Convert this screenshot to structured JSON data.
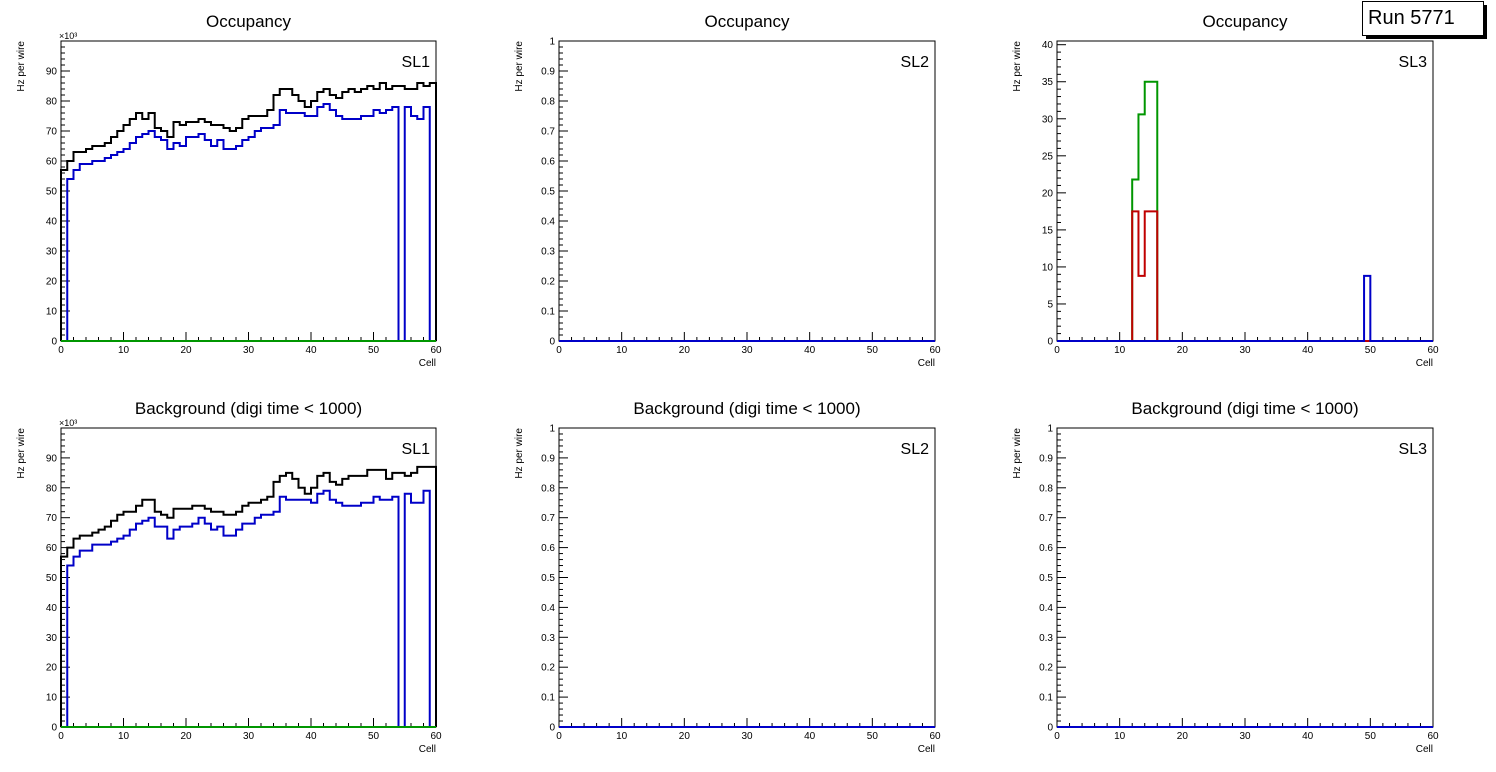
{
  "run_label": "Run 5771",
  "colors": {
    "total": "#000000",
    "blue": "#0000c8",
    "green": "#009600",
    "red": "#c00000"
  },
  "chart_data": [
    {
      "id": "occ-sl1",
      "type": "line",
      "title": "Occupancy",
      "label": "SL1",
      "xlabel": "Cell",
      "ylabel": "Hz per wire",
      "exponent": "×10³",
      "xlim": [
        0,
        60
      ],
      "ylim": [
        0,
        100
      ],
      "xticks": [
        0,
        10,
        20,
        30,
        40,
        50,
        60
      ],
      "yticks": [
        0,
        10,
        20,
        30,
        40,
        50,
        60,
        70,
        80,
        90
      ],
      "series": [
        {
          "color": "#000000",
          "values": [
            57,
            60,
            63,
            63,
            64,
            65,
            65,
            66,
            68,
            70,
            72,
            74,
            76,
            74,
            76,
            71,
            70,
            68,
            73,
            72,
            73,
            73,
            74,
            73,
            72,
            72,
            71,
            70,
            71,
            74,
            75,
            75,
            75,
            77,
            82,
            84,
            84,
            82,
            80,
            78,
            80,
            83,
            84,
            82,
            81,
            83,
            84,
            83,
            84,
            85,
            84,
            86,
            84,
            85,
            85,
            84,
            84,
            86,
            85,
            86
          ]
        },
        {
          "color": "#0000c8",
          "values": [
            0,
            54,
            57,
            59,
            59,
            60,
            60,
            61,
            62,
            63,
            64,
            66,
            68,
            69,
            70,
            68,
            67,
            64,
            66,
            65,
            68,
            68,
            69,
            67,
            65,
            67,
            64,
            64,
            65,
            67,
            68,
            70,
            71,
            71,
            72,
            77,
            76,
            76,
            76,
            75,
            75,
            78,
            79,
            77,
            75,
            74,
            74,
            74,
            75,
            75,
            77,
            76,
            77,
            78,
            0,
            78,
            75,
            74,
            78,
            0
          ]
        },
        {
          "color": "#009600",
          "values": [
            0,
            0,
            0,
            0,
            0,
            0,
            0,
            0,
            0,
            0,
            0,
            0,
            0,
            0,
            0,
            0,
            0,
            0,
            0,
            0,
            0,
            0,
            0,
            0,
            0,
            0,
            0,
            0,
            0,
            0,
            0,
            0,
            0,
            0,
            0,
            0,
            0,
            0,
            0,
            0,
            0,
            0,
            0,
            0,
            0,
            0,
            0,
            0,
            0,
            0,
            0,
            0,
            0,
            0,
            0,
            0,
            0,
            0,
            0,
            0
          ]
        }
      ]
    },
    {
      "id": "occ-sl2",
      "type": "line",
      "title": "Occupancy",
      "label": "SL2",
      "xlabel": "Cell",
      "ylabel": "Hz per wire",
      "exponent": "",
      "xlim": [
        0,
        60
      ],
      "ylim": [
        0,
        1
      ],
      "xticks": [
        0,
        10,
        20,
        30,
        40,
        50,
        60
      ],
      "yticks": [
        0,
        0.1,
        0.2,
        0.3,
        0.4,
        0.5,
        0.6,
        0.7,
        0.8,
        0.9,
        1
      ],
      "series": [
        {
          "color": "#0000c8",
          "values": [
            0,
            0,
            0,
            0,
            0,
            0,
            0,
            0,
            0,
            0,
            0,
            0,
            0,
            0,
            0,
            0,
            0,
            0,
            0,
            0,
            0,
            0,
            0,
            0,
            0,
            0,
            0,
            0,
            0,
            0,
            0,
            0,
            0,
            0,
            0,
            0,
            0,
            0,
            0,
            0,
            0,
            0,
            0,
            0,
            0,
            0,
            0,
            0,
            0,
            0,
            0,
            0,
            0,
            0,
            0,
            0,
            0,
            0,
            0,
            0
          ]
        }
      ]
    },
    {
      "id": "occ-sl3",
      "type": "line",
      "title": "Occupancy",
      "label": "SL3",
      "xlabel": "Cell",
      "ylabel": "Hz per wire",
      "exponent": "",
      "xlim": [
        0,
        60
      ],
      "ylim": [
        0,
        40.5
      ],
      "xticks": [
        0,
        10,
        20,
        30,
        40,
        50,
        60
      ],
      "yticks": [
        0,
        5,
        10,
        15,
        20,
        25,
        30,
        35,
        40
      ],
      "series": [
        {
          "color": "#009600",
          "values": [
            0,
            0,
            0,
            0,
            0,
            0,
            0,
            0,
            0,
            0,
            0,
            0,
            21.8,
            30.6,
            35,
            35,
            0,
            0,
            0,
            0,
            0,
            0,
            0,
            0,
            0,
            0,
            0,
            0,
            0,
            0,
            0,
            0,
            0,
            0,
            0,
            0,
            0,
            0,
            0,
            0,
            0,
            0,
            0,
            0,
            0,
            0,
            0,
            0,
            0,
            0,
            0,
            0,
            0,
            0,
            0,
            0,
            0,
            0,
            0,
            0
          ]
        },
        {
          "color": "#c00000",
          "values": [
            0,
            0,
            0,
            0,
            0,
            0,
            0,
            0,
            0,
            0,
            0,
            0,
            17.5,
            8.8,
            17.5,
            17.5,
            0,
            0,
            0,
            0,
            0,
            0,
            0,
            0,
            0,
            0,
            0,
            0,
            0,
            0,
            0,
            0,
            0,
            0,
            0,
            0,
            0,
            0,
            0,
            0,
            0,
            0,
            0,
            0,
            0,
            0,
            0,
            0,
            0,
            0,
            0,
            0,
            0,
            0,
            0,
            0,
            0,
            0,
            0,
            0
          ]
        },
        {
          "color": "#0000c8",
          "values": [
            0,
            0,
            0,
            0,
            0,
            0,
            0,
            0,
            0,
            0,
            0,
            0,
            0,
            0,
            0,
            0,
            0,
            0,
            0,
            0,
            0,
            0,
            0,
            0,
            0,
            0,
            0,
            0,
            0,
            0,
            0,
            0,
            0,
            0,
            0,
            0,
            0,
            0,
            0,
            0,
            0,
            0,
            0,
            0,
            0,
            0,
            0,
            0,
            0,
            8.8,
            0,
            0,
            0,
            0,
            0,
            0,
            0,
            0,
            0,
            0
          ]
        }
      ]
    },
    {
      "id": "bkg-sl1",
      "type": "line",
      "title": "Background (digi time < 1000)",
      "label": "SL1",
      "xlabel": "Cell",
      "ylabel": "Hz per wire",
      "exponent": "×10³",
      "xlim": [
        0,
        60
      ],
      "ylim": [
        0,
        100
      ],
      "xticks": [
        0,
        10,
        20,
        30,
        40,
        50,
        60
      ],
      "yticks": [
        0,
        10,
        20,
        30,
        40,
        50,
        60,
        70,
        80,
        90
      ],
      "series": [
        {
          "color": "#000000",
          "values": [
            57,
            60,
            63,
            64,
            64,
            65,
            66,
            67,
            69,
            71,
            72,
            72,
            74,
            76,
            76,
            72,
            71,
            70,
            73,
            73,
            73,
            74,
            74,
            73,
            72,
            72,
            71,
            71,
            72,
            74,
            75,
            75,
            76,
            77,
            82,
            84,
            85,
            83,
            80,
            78,
            80,
            84,
            85,
            82,
            81,
            83,
            84,
            84,
            84,
            86,
            86,
            86,
            83,
            85,
            85,
            84,
            85,
            87,
            87,
            87
          ]
        },
        {
          "color": "#0000c8",
          "values": [
            0,
            54,
            57,
            59,
            59,
            61,
            61,
            61,
            62,
            63,
            64,
            66,
            68,
            69,
            70,
            67,
            67,
            63,
            66,
            67,
            67,
            68,
            70,
            68,
            66,
            67,
            64,
            64,
            66,
            68,
            68,
            70,
            71,
            71,
            72,
            77,
            76,
            76,
            76,
            76,
            75,
            78,
            79,
            76,
            75,
            74,
            74,
            74,
            75,
            75,
            77,
            76,
            76,
            77,
            0,
            78,
            75,
            75,
            79,
            0
          ]
        },
        {
          "color": "#009600",
          "values": [
            0,
            0,
            0,
            0,
            0,
            0,
            0,
            0,
            0,
            0,
            0,
            0,
            0,
            0,
            0,
            0,
            0,
            0,
            0,
            0,
            0,
            0,
            0,
            0,
            0,
            0,
            0,
            0,
            0,
            0,
            0,
            0,
            0,
            0,
            0,
            0,
            0,
            0,
            0,
            0,
            0,
            0,
            0,
            0,
            0,
            0,
            0,
            0,
            0,
            0,
            0,
            0,
            0,
            0,
            0,
            0,
            0,
            0,
            0,
            0
          ]
        }
      ]
    },
    {
      "id": "bkg-sl2",
      "type": "line",
      "title": "Background (digi time < 1000)",
      "label": "SL2",
      "xlabel": "Cell",
      "ylabel": "Hz per wire",
      "exponent": "",
      "xlim": [
        0,
        60
      ],
      "ylim": [
        0,
        1
      ],
      "xticks": [
        0,
        10,
        20,
        30,
        40,
        50,
        60
      ],
      "yticks": [
        0,
        0.1,
        0.2,
        0.3,
        0.4,
        0.5,
        0.6,
        0.7,
        0.8,
        0.9,
        1
      ],
      "series": [
        {
          "color": "#0000c8",
          "values": [
            0,
            0,
            0,
            0,
            0,
            0,
            0,
            0,
            0,
            0,
            0,
            0,
            0,
            0,
            0,
            0,
            0,
            0,
            0,
            0,
            0,
            0,
            0,
            0,
            0,
            0,
            0,
            0,
            0,
            0,
            0,
            0,
            0,
            0,
            0,
            0,
            0,
            0,
            0,
            0,
            0,
            0,
            0,
            0,
            0,
            0,
            0,
            0,
            0,
            0,
            0,
            0,
            0,
            0,
            0,
            0,
            0,
            0,
            0,
            0
          ]
        }
      ]
    },
    {
      "id": "bkg-sl3",
      "type": "line",
      "title": "Background (digi time < 1000)",
      "label": "SL3",
      "xlabel": "Cell",
      "ylabel": "Hz per wire",
      "exponent": "",
      "xlim": [
        0,
        60
      ],
      "ylim": [
        0,
        1
      ],
      "xticks": [
        0,
        10,
        20,
        30,
        40,
        50,
        60
      ],
      "yticks": [
        0,
        0.1,
        0.2,
        0.3,
        0.4,
        0.5,
        0.6,
        0.7,
        0.8,
        0.9,
        1
      ],
      "series": [
        {
          "color": "#0000c8",
          "values": [
            0,
            0,
            0,
            0,
            0,
            0,
            0,
            0,
            0,
            0,
            0,
            0,
            0,
            0,
            0,
            0,
            0,
            0,
            0,
            0,
            0,
            0,
            0,
            0,
            0,
            0,
            0,
            0,
            0,
            0,
            0,
            0,
            0,
            0,
            0,
            0,
            0,
            0,
            0,
            0,
            0,
            0,
            0,
            0,
            0,
            0,
            0,
            0,
            0,
            0,
            0,
            0,
            0,
            0,
            0,
            0,
            0,
            0,
            0,
            0
          ]
        }
      ]
    }
  ]
}
